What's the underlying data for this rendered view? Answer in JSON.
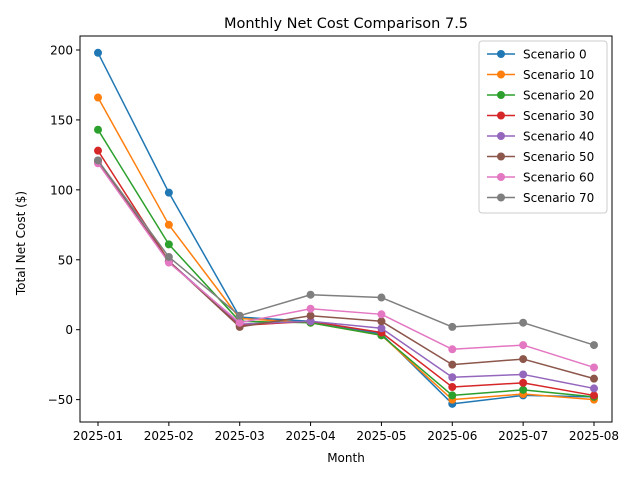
{
  "chart_data": {
    "type": "line",
    "title": "Monthly Net Cost Comparison 7.5",
    "xlabel": "Month",
    "ylabel": "Total Net Cost ($)",
    "categories": [
      "2025-01",
      "2025-02",
      "2025-03",
      "2025-04",
      "2025-05",
      "2025-06",
      "2025-07",
      "2025-08"
    ],
    "yticks": [
      -50,
      0,
      50,
      100,
      150,
      200
    ],
    "ylim": [
      -66,
      210
    ],
    "grid": false,
    "legend_position": "upper right",
    "series": [
      {
        "name": "Scenario 0",
        "color": "#1f77b4",
        "values": [
          198,
          98,
          9,
          6,
          -3,
          -53,
          -47,
          -48
        ]
      },
      {
        "name": "Scenario 10",
        "color": "#ff7f0e",
        "values": [
          166,
          75,
          8,
          5,
          -4,
          -50,
          -46,
          -50
        ]
      },
      {
        "name": "Scenario 20",
        "color": "#2ca02c",
        "values": [
          143,
          61,
          6,
          5,
          -4,
          -47,
          -43,
          -48
        ]
      },
      {
        "name": "Scenario 30",
        "color": "#d62728",
        "values": [
          128,
          49,
          3,
          6,
          -2,
          -41,
          -38,
          -47
        ]
      },
      {
        "name": "Scenario 40",
        "color": "#9467bd",
        "values": [
          121,
          49,
          4,
          6,
          1,
          -34,
          -32,
          -42
        ]
      },
      {
        "name": "Scenario 50",
        "color": "#8c564b",
        "values": [
          120,
          49,
          2,
          10,
          6,
          -25,
          -21,
          -35
        ]
      },
      {
        "name": "Scenario 60",
        "color": "#e377c2",
        "values": [
          119,
          48,
          5,
          15,
          11,
          -14,
          -11,
          -27
        ]
      },
      {
        "name": "Scenario 70",
        "color": "#7f7f7f",
        "values": [
          121,
          52,
          10,
          25,
          23,
          2,
          5,
          -11
        ]
      }
    ]
  }
}
